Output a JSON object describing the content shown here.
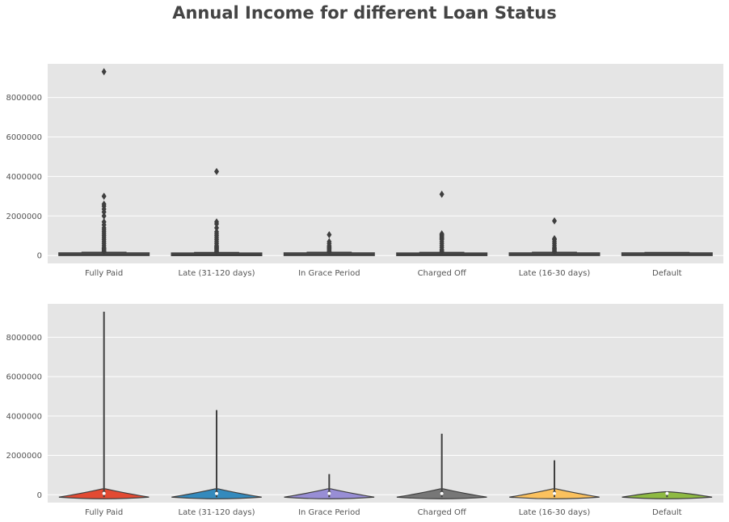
{
  "figure_title": "Annual Income for different Loan Status",
  "chart_data": [
    {
      "type": "boxplot",
      "categories": [
        "Fully Paid",
        "Late (31-120 days)",
        "In Grace Period",
        "Charged Off",
        "Late (16-30 days)",
        "Default"
      ],
      "ylim": [
        -400000,
        9700000
      ],
      "yticks": [
        0,
        2000000,
        4000000,
        6000000,
        8000000
      ],
      "ytick_labels": [
        "0",
        "2000000",
        "4000000",
        "6000000",
        "8000000"
      ],
      "grid": true,
      "boxes": [
        {
          "q1": 45000,
          "median": 65000,
          "q3": 90000,
          "whisker_low": 0,
          "whisker_high": 160000,
          "max_outlier": 9300000,
          "outliers": [
            9300000,
            3000000,
            2600000,
            2500000,
            2350000,
            2200000,
            2000000,
            1700000,
            1550000,
            1400000,
            1300000,
            1200000,
            1100000,
            1000000,
            900000,
            800000,
            700000,
            600000,
            500000,
            400000,
            350000,
            300000,
            250000,
            200000
          ]
        },
        {
          "q1": 40000,
          "median": 60000,
          "q3": 85000,
          "whisker_low": 0,
          "whisker_high": 150000,
          "max_outlier": 4250000,
          "outliers": [
            4250000,
            1700000,
            1600000,
            1400000,
            1200000,
            1100000,
            1000000,
            900000,
            800000,
            700000,
            600000,
            500000,
            450000,
            400000,
            350000,
            300000,
            250000,
            200000
          ]
        },
        {
          "q1": 45000,
          "median": 65000,
          "q3": 90000,
          "whisker_low": 0,
          "whisker_high": 160000,
          "max_outlier": 1050000,
          "outliers": [
            1050000,
            700000,
            600000,
            500000,
            450000,
            400000,
            350000,
            300000,
            250000,
            200000
          ]
        },
        {
          "q1": 42000,
          "median": 60000,
          "q3": 85000,
          "whisker_low": 0,
          "whisker_high": 155000,
          "max_outlier": 3100000,
          "outliers": [
            3100000,
            1100000,
            1050000,
            1000000,
            950000,
            900000,
            850000,
            800000,
            700000,
            600000,
            500000,
            400000,
            300000,
            250000,
            200000
          ]
        },
        {
          "q1": 45000,
          "median": 65000,
          "q3": 90000,
          "whisker_low": 0,
          "whisker_high": 160000,
          "max_outlier": 1750000,
          "outliers": [
            1750000,
            850000,
            800000,
            700000,
            600000,
            500000,
            400000,
            350000,
            300000,
            250000,
            200000
          ]
        },
        {
          "q1": 45000,
          "median": 65000,
          "q3": 90000,
          "whisker_low": 0,
          "whisker_high": 150000,
          "max_outlier": 150000,
          "outliers": []
        }
      ]
    },
    {
      "type": "violin",
      "categories": [
        "Fully Paid",
        "Late (31-120 days)",
        "In Grace Period",
        "Charged Off",
        "Late (16-30 days)",
        "Default"
      ],
      "ylim": [
        -400000,
        9700000
      ],
      "yticks": [
        0,
        2000000,
        4000000,
        6000000,
        8000000
      ],
      "ytick_labels": [
        "0",
        "2000000",
        "4000000",
        "6000000",
        "8000000"
      ],
      "grid": true,
      "colors": [
        "#e24a33",
        "#348abd",
        "#988ed5",
        "#777777",
        "#fbc15e",
        "#8eba42"
      ],
      "violins": [
        {
          "max": 9300000,
          "median": 65000
        },
        {
          "max": 4300000,
          "median": 60000
        },
        {
          "max": 1050000,
          "median": 65000
        },
        {
          "max": 3100000,
          "median": 60000
        },
        {
          "max": 1750000,
          "median": 65000
        },
        {
          "max": 150000,
          "median": 65000
        }
      ]
    }
  ]
}
